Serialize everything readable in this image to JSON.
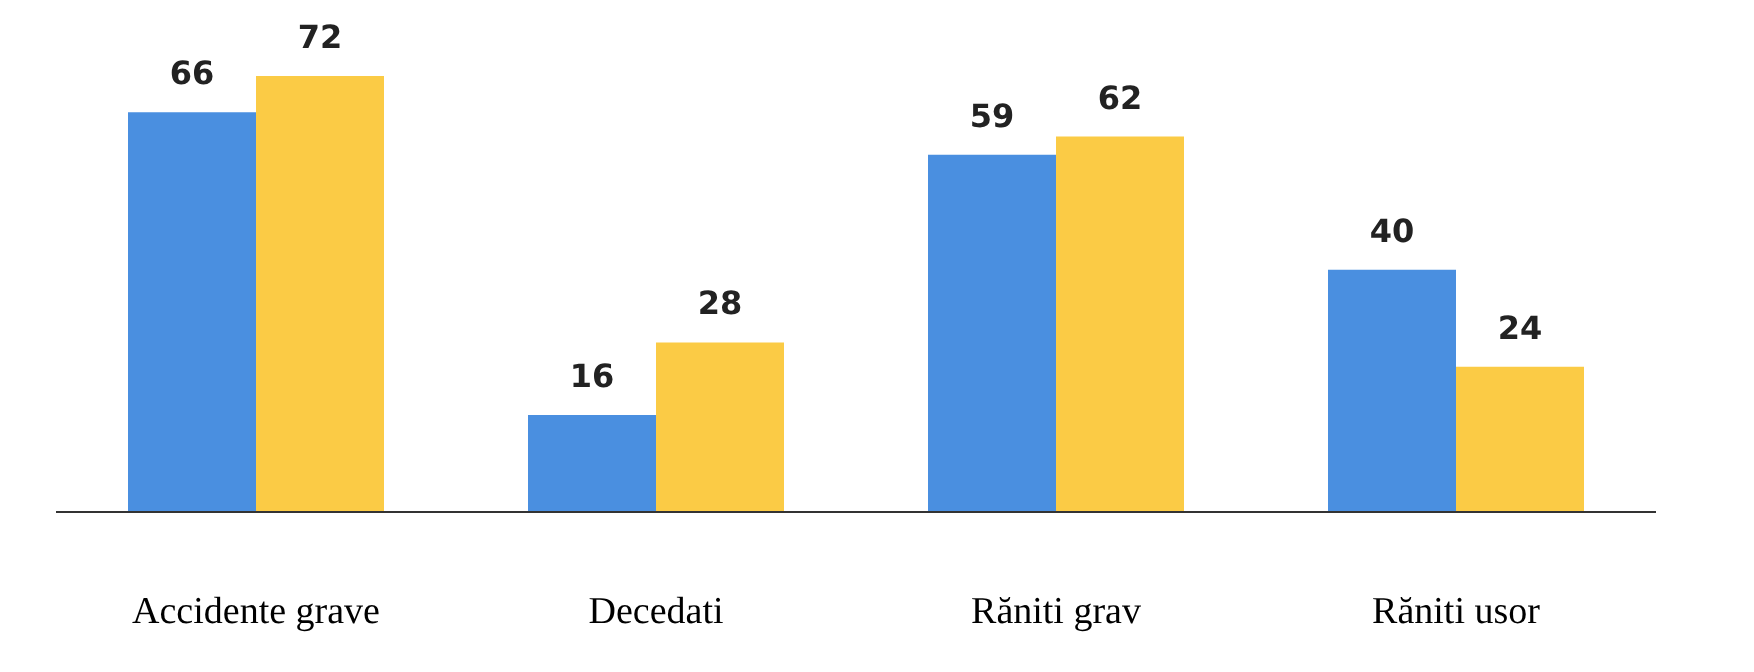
{
  "chart_data": {
    "type": "bar",
    "categories": [
      "Accidente grave",
      "Decedati",
      "Răniti grav",
      "Răniti usor"
    ],
    "series": [
      {
        "color": "#4a8fe0",
        "values": [
          66,
          16,
          59,
          40
        ]
      },
      {
        "color": "#fbcb45",
        "values": [
          72,
          28,
          62,
          24
        ]
      }
    ],
    "data_labels": true,
    "grid": false,
    "legend": false
  }
}
